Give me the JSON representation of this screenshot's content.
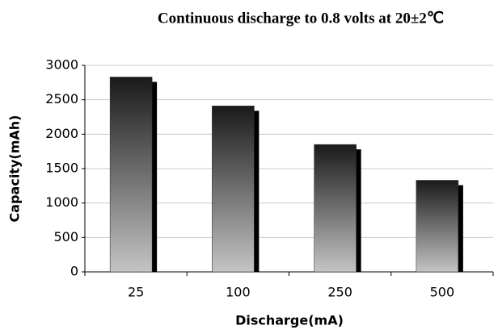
{
  "chart_data": {
    "type": "bar",
    "title": "Continuous discharge to 0.8 volts at 20±2℃",
    "x_label": "Discharge(mA)",
    "y_label": "Capacity(mAh)",
    "categories": [
      "25",
      "100",
      "250",
      "500"
    ],
    "values": [
      2830,
      2410,
      1850,
      1330
    ],
    "color": "#222222",
    "ylim": [
      0,
      3000
    ],
    "yticks": [
      0,
      500,
      1000,
      1500,
      2000,
      2500,
      3000
    ],
    "grid": true
  }
}
